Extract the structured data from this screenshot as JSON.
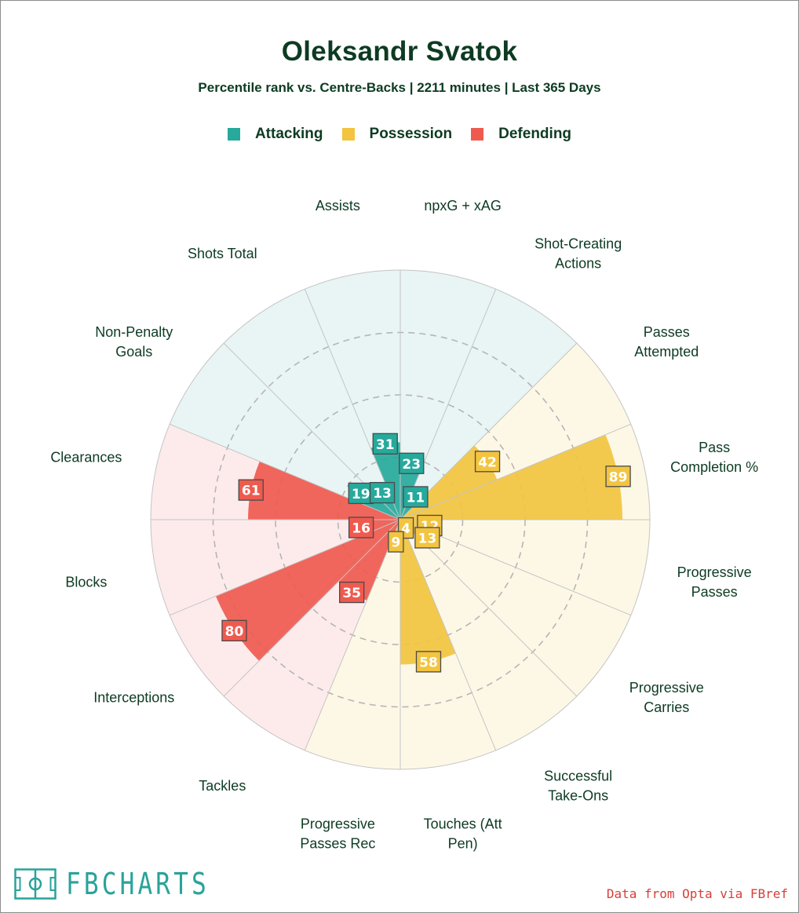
{
  "chart_data": {
    "type": "radar",
    "title": "Oleksandr Svatok",
    "subtitle": "Percentile rank vs. Centre-Backs | 2211 minutes | Last 365 Days",
    "rlim": [
      0,
      100
    ],
    "grid_levels": [
      25,
      50,
      75,
      100
    ],
    "legend": [
      {
        "name": "Attacking",
        "color": "#27a99c"
      },
      {
        "name": "Possession",
        "color": "#f2c440"
      },
      {
        "name": "Defending",
        "color": "#ef5a4f"
      }
    ],
    "categories": [
      {
        "label": [
          "npxG + xAG"
        ],
        "value": 23,
        "group": "Attacking"
      },
      {
        "label": [
          "Shot-Creating",
          "Actions"
        ],
        "value": 11,
        "group": "Attacking"
      },
      {
        "label": [
          "Passes",
          "Attempted"
        ],
        "value": 42,
        "group": "Possession"
      },
      {
        "label": [
          "Pass",
          "Completion %"
        ],
        "value": 89,
        "group": "Possession"
      },
      {
        "label": [
          "Progressive",
          "Passes"
        ],
        "value": 12,
        "group": "Possession"
      },
      {
        "label": [
          "Progressive",
          "Carries"
        ],
        "value": 13,
        "group": "Possession"
      },
      {
        "label": [
          "Successful",
          "Take-Ons"
        ],
        "value": 4,
        "group": "Possession"
      },
      {
        "label": [
          "Touches (Att",
          "Pen)"
        ],
        "value": 58,
        "group": "Possession"
      },
      {
        "label": [
          "Progressive",
          "Passes Rec"
        ],
        "value": 9,
        "group": "Possession"
      },
      {
        "label": [
          "Tackles"
        ],
        "value": 35,
        "group": "Defending"
      },
      {
        "label": [
          "Interceptions"
        ],
        "value": 80,
        "group": "Defending"
      },
      {
        "label": [
          "Blocks"
        ],
        "value": 16,
        "group": "Defending"
      },
      {
        "label": [
          "Clearances"
        ],
        "value": 61,
        "group": "Defending"
      },
      {
        "label": [
          "Non-Penalty",
          "Goals"
        ],
        "value": 19,
        "group": "Attacking"
      },
      {
        "label": [
          "Shots Total"
        ],
        "value": 13,
        "group": "Attacking"
      },
      {
        "label": [
          "Assists"
        ],
        "value": 31,
        "group": "Attacking"
      }
    ],
    "group_background": {
      "Attacking": "#e8f5f4",
      "Possession": "#fdf8e6",
      "Defending": "#fdebec"
    }
  },
  "branding": {
    "logo_text": "FBCHARTS",
    "credit": "Data from Opta via FBref"
  }
}
